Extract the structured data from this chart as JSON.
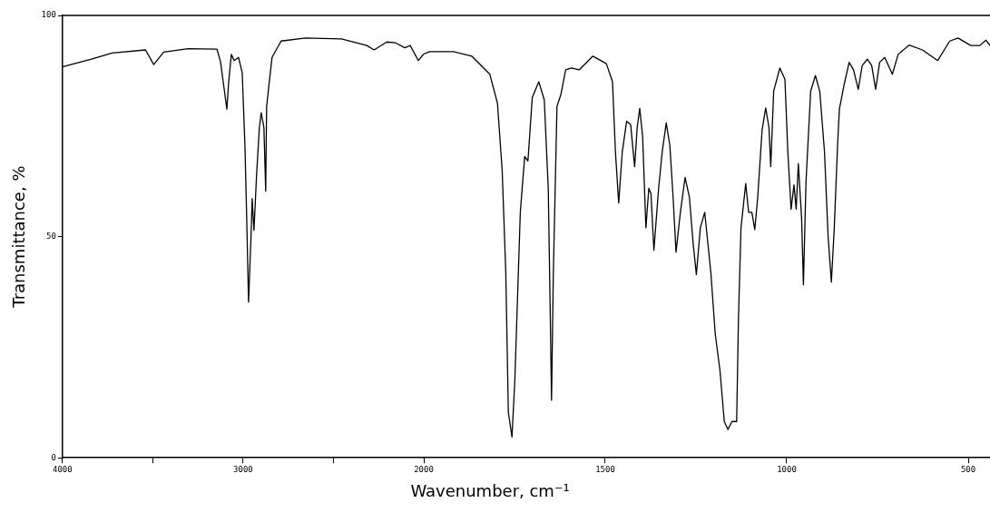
{
  "chart_data": [
    {
      "type": "line",
      "ylabel": "Transmittance, %",
      "xlim": [
        4000,
        2000
      ],
      "ylim": [
        0,
        100
      ],
      "xticks": [
        4000,
        {
          "value": 3500,
          "label": null
        },
        3000,
        {
          "value": 2500,
          "label": null
        }
      ],
      "yticks": [
        0,
        50,
        100
      ],
      "grid": false,
      "legend": false,
      "marker": "none",
      "series": [
        {
          "color": "#000000",
          "x": [
            4000,
            3840,
            3725,
            3540,
            3495,
            3440,
            3305,
            3145,
            3125,
            3090,
            3080,
            3065,
            3050,
            3025,
            3005,
            2990,
            2980,
            2970,
            2955,
            2950,
            2940,
            2925,
            2910,
            2900,
            2885,
            2875,
            2870,
            2855,
            2840,
            2790,
            2655,
            2455,
            2315,
            2275,
            2205,
            2155,
            2105,
            2075,
            2030,
            2000
          ],
          "values": [
            88.4,
            90.1,
            91.5,
            92.2,
            88.9,
            91.7,
            92.5,
            92.4,
            89.5,
            78.8,
            85,
            91.2,
            89.8,
            90.5,
            87,
            70.6,
            54,
            35.2,
            51.4,
            58.6,
            51.4,
            64.4,
            74.7,
            78,
            74.7,
            60.3,
            79.4,
            85,
            90.5,
            94.2,
            94.9,
            94.7,
            93.2,
            92.2,
            94,
            93.8,
            92.7,
            93.2,
            89.8,
            91.3
          ]
        }
      ]
    },
    {
      "type": "line",
      "xlabel": "Wavenumber, cm⁻¹",
      "xlim": [
        2000,
        440
      ],
      "ylim": [
        0,
        100
      ],
      "xticks": [
        2000,
        1500,
        1000,
        500
      ],
      "tick_labels": "x",
      "grid": false,
      "legend": false,
      "marker": "none",
      "series": [
        {
          "color": "#000000",
          "x": [
            2000,
            1993,
            1984,
            1918,
            1868,
            1818,
            1797,
            1784,
            1774,
            1767,
            1757,
            1749,
            1734,
            1722,
            1713,
            1701,
            1683,
            1668,
            1657,
            1652,
            1648,
            1643,
            1633,
            1622,
            1609,
            1593,
            1572,
            1534,
            1497,
            1480,
            1472,
            1463,
            1453,
            1441,
            1430,
            1419,
            1412,
            1405,
            1397,
            1388,
            1380,
            1374,
            1366,
            1353,
            1343,
            1332,
            1322,
            1313,
            1305,
            1293,
            1280,
            1268,
            1258,
            1249,
            1238,
            1226,
            1209,
            1197,
            1184,
            1172,
            1162,
            1151,
            1138,
            1133,
            1126,
            1113,
            1105,
            1096,
            1088,
            1080,
            1068,
            1058,
            1049,
            1044,
            1036,
            1019,
            1005,
            997,
            988,
            980,
            974,
            968,
            959,
            954,
            947,
            934,
            921,
            909,
            896,
            886,
            877,
            869,
            860,
            855,
            842,
            828,
            816,
            803,
            792,
            778,
            766,
            755,
            744,
            730,
            709,
            693,
            663,
            626,
            584,
            551,
            528,
            493,
            468,
            451,
            440
          ],
          "values": [
            91.3,
            91.5,
            91.8,
            91.8,
            90.8,
            86.7,
            80.2,
            65,
            41.8,
            10.3,
            4.7,
            17.7,
            55.5,
            68.1,
            67.1,
            81.5,
            85,
            80.9,
            60.9,
            35,
            13,
            41.8,
            79.4,
            82.2,
            87.7,
            88.1,
            87.7,
            90.8,
            89.1,
            85,
            69.2,
            57.6,
            69.2,
            76.1,
            75.3,
            65.8,
            74.7,
            79,
            72.6,
            52,
            60.9,
            59.7,
            46.9,
            60.9,
            69.2,
            75.7,
            70.6,
            58.8,
            46.5,
            55.5,
            63.4,
            58.8,
            48.6,
            41.4,
            52,
            55.5,
            41.8,
            28,
            19.8,
            8.2,
            6.4,
            8.2,
            8.2,
            31.5,
            52,
            62,
            55.5,
            55.5,
            51.6,
            58.8,
            74,
            79.1,
            74.7,
            65.8,
            82.9,
            88.1,
            85.6,
            69.2,
            56.2,
            61.7,
            56.2,
            66.5,
            54.1,
            39.1,
            62.3,
            82.9,
            86.4,
            82.9,
            69.2,
            50,
            39.7,
            52,
            70.6,
            78.8,
            84.3,
            89.4,
            87.7,
            83.3,
            88.7,
            90.1,
            88.7,
            83.3,
            89.4,
            90.5,
            86.7,
            91.2,
            93.3,
            92.2,
            89.8,
            94.2,
            94.9,
            93.2,
            93.2,
            94.4,
            93.2
          ]
        }
      ]
    }
  ]
}
